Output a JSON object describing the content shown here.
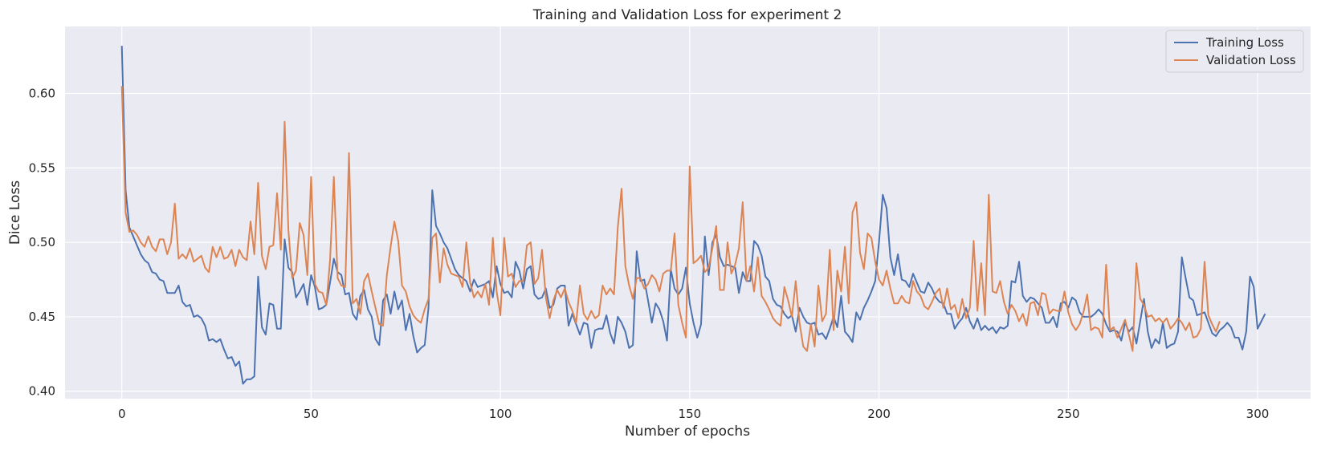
{
  "chart_data": {
    "type": "line",
    "title": "Training and Validation Loss for experiment 2",
    "xlabel": "Number of epochs",
    "ylabel": "Dice Loss",
    "xlim": [
      -15,
      314
    ],
    "ylim": [
      0.395,
      0.645
    ],
    "xticks": [
      0,
      50,
      100,
      150,
      200,
      250,
      300
    ],
    "yticks": [
      0.4,
      0.45,
      0.5,
      0.55,
      0.6
    ],
    "ytick_labels": [
      "0.40",
      "0.45",
      "0.50",
      "0.55",
      "0.60"
    ],
    "grid": true,
    "legend_position": "top-right",
    "colors": {
      "background": "#EAEAF2",
      "grid": "#FFFFFF",
      "training": "#4C72B0",
      "validation": "#DD8452"
    },
    "series": [
      {
        "name": "Training Loss",
        "color": "#4C72B0",
        "x_start": 0,
        "values": [
          0.632,
          0.535,
          0.51,
          0.504,
          0.498,
          0.492,
          0.488,
          0.486,
          0.48,
          0.479,
          0.475,
          0.474,
          0.466,
          0.466,
          0.466,
          0.471,
          0.46,
          0.457,
          0.458,
          0.45,
          0.451,
          0.449,
          0.444,
          0.434,
          0.435,
          0.433,
          0.435,
          0.428,
          0.422,
          0.423,
          0.417,
          0.42,
          0.405,
          0.408,
          0.408,
          0.41,
          0.477,
          0.443,
          0.438,
          0.459,
          0.458,
          0.442,
          0.442,
          0.502,
          0.483,
          0.48,
          0.463,
          0.467,
          0.472,
          0.458,
          0.478,
          0.47,
          0.455,
          0.456,
          0.458,
          0.473,
          0.489,
          0.48,
          0.478,
          0.465,
          0.466,
          0.452,
          0.448,
          0.464,
          0.468,
          0.455,
          0.45,
          0.435,
          0.431,
          0.461,
          0.465,
          0.452,
          0.467,
          0.455,
          0.461,
          0.441,
          0.452,
          0.437,
          0.426,
          0.429,
          0.431,
          0.456,
          0.535,
          0.511,
          0.506,
          0.5,
          0.496,
          0.489,
          0.482,
          0.478,
          0.476,
          0.474,
          0.467,
          0.475,
          0.47,
          0.471,
          0.472,
          0.474,
          0.463,
          0.484,
          0.472,
          0.466,
          0.467,
          0.463,
          0.487,
          0.481,
          0.469,
          0.482,
          0.484,
          0.465,
          0.462,
          0.463,
          0.469,
          0.456,
          0.458,
          0.469,
          0.471,
          0.471,
          0.444,
          0.452,
          0.445,
          0.438,
          0.446,
          0.445,
          0.429,
          0.441,
          0.442,
          0.442,
          0.451,
          0.439,
          0.432,
          0.45,
          0.446,
          0.44,
          0.429,
          0.431,
          0.494,
          0.474,
          0.475,
          0.461,
          0.446,
          0.459,
          0.455,
          0.447,
          0.434,
          0.482,
          0.469,
          0.465,
          0.469,
          0.483,
          0.459,
          0.446,
          0.436,
          0.445,
          0.504,
          0.478,
          0.5,
          0.505,
          0.49,
          0.484,
          0.485,
          0.484,
          0.483,
          0.466,
          0.48,
          0.474,
          0.474,
          0.501,
          0.498,
          0.491,
          0.477,
          0.474,
          0.462,
          0.458,
          0.457,
          0.452,
          0.449,
          0.451,
          0.44,
          0.456,
          0.45,
          0.446,
          0.445,
          0.446,
          0.438,
          0.439,
          0.435,
          0.442,
          0.45,
          0.443,
          0.464,
          0.44,
          0.437,
          0.433,
          0.453,
          0.448,
          0.456,
          0.461,
          0.467,
          0.474,
          0.5,
          0.532,
          0.523,
          0.49,
          0.478,
          0.492,
          0.475,
          0.474,
          0.47,
          0.479,
          0.473,
          0.467,
          0.466,
          0.473,
          0.469,
          0.463,
          0.46,
          0.459,
          0.452,
          0.452,
          0.442,
          0.446,
          0.449,
          0.456,
          0.447,
          0.442,
          0.449,
          0.441,
          0.444,
          0.441,
          0.443,
          0.439,
          0.443,
          0.442,
          0.444,
          0.474,
          0.473,
          0.487,
          0.464,
          0.46,
          0.463,
          0.462,
          0.459,
          0.456,
          0.446,
          0.446,
          0.45,
          0.443,
          0.459,
          0.46,
          0.456,
          0.463,
          0.461,
          0.453,
          0.45,
          0.45,
          0.45,
          0.452,
          0.455,
          0.452,
          0.445,
          0.44,
          0.441,
          0.44,
          0.434,
          0.446,
          0.44,
          0.443,
          0.432,
          0.447,
          0.462,
          0.44,
          0.429,
          0.435,
          0.432,
          0.446,
          0.429,
          0.431,
          0.432,
          0.44,
          0.49,
          0.476,
          0.463,
          0.461,
          0.451,
          0.452,
          0.453,
          0.446,
          0.439,
          0.437,
          0.441,
          0.443,
          0.446,
          0.443,
          0.436,
          0.436,
          0.428,
          0.44,
          0.477,
          0.47,
          0.442,
          0.447,
          0.452
        ]
      },
      {
        "name": "Validation Loss",
        "color": "#DD8452",
        "x_start": 0,
        "values": [
          0.605,
          0.52,
          0.507,
          0.508,
          0.505,
          0.5,
          0.497,
          0.504,
          0.497,
          0.494,
          0.502,
          0.502,
          0.492,
          0.5,
          0.526,
          0.489,
          0.492,
          0.489,
          0.496,
          0.487,
          0.489,
          0.491,
          0.483,
          0.48,
          0.497,
          0.49,
          0.497,
          0.489,
          0.49,
          0.495,
          0.484,
          0.495,
          0.49,
          0.488,
          0.514,
          0.492,
          0.54,
          0.491,
          0.482,
          0.497,
          0.498,
          0.533,
          0.495,
          0.581,
          0.508,
          0.476,
          0.481,
          0.513,
          0.505,
          0.478,
          0.544,
          0.472,
          0.467,
          0.466,
          0.458,
          0.488,
          0.544,
          0.476,
          0.471,
          0.47,
          0.56,
          0.459,
          0.462,
          0.452,
          0.474,
          0.479,
          0.467,
          0.456,
          0.445,
          0.444,
          0.478,
          0.497,
          0.514,
          0.501,
          0.471,
          0.467,
          0.457,
          0.451,
          0.448,
          0.446,
          0.455,
          0.462,
          0.503,
          0.506,
          0.473,
          0.496,
          0.485,
          0.479,
          0.478,
          0.477,
          0.47,
          0.5,
          0.473,
          0.463,
          0.467,
          0.463,
          0.472,
          0.458,
          0.503,
          0.467,
          0.451,
          0.503,
          0.477,
          0.479,
          0.47,
          0.474,
          0.474,
          0.498,
          0.5,
          0.472,
          0.476,
          0.495,
          0.463,
          0.449,
          0.461,
          0.468,
          0.463,
          0.469,
          0.46,
          0.454,
          0.446,
          0.471,
          0.452,
          0.448,
          0.454,
          0.449,
          0.451,
          0.471,
          0.465,
          0.469,
          0.465,
          0.51,
          0.536,
          0.484,
          0.471,
          0.462,
          0.476,
          0.476,
          0.469,
          0.472,
          0.478,
          0.475,
          0.467,
          0.479,
          0.481,
          0.481,
          0.506,
          0.458,
          0.446,
          0.436,
          0.551,
          0.486,
          0.488,
          0.491,
          0.48,
          0.483,
          0.496,
          0.511,
          0.468,
          0.468,
          0.5,
          0.479,
          0.485,
          0.496,
          0.527,
          0.474,
          0.484,
          0.467,
          0.49,
          0.464,
          0.46,
          0.455,
          0.449,
          0.446,
          0.444,
          0.47,
          0.461,
          0.45,
          0.474,
          0.446,
          0.43,
          0.427,
          0.445,
          0.43,
          0.471,
          0.447,
          0.452,
          0.495,
          0.441,
          0.481,
          0.467,
          0.497,
          0.459,
          0.52,
          0.527,
          0.493,
          0.482,
          0.506,
          0.503,
          0.487,
          0.475,
          0.471,
          0.481,
          0.469,
          0.459,
          0.459,
          0.464,
          0.46,
          0.459,
          0.474,
          0.467,
          0.464,
          0.457,
          0.455,
          0.46,
          0.466,
          0.469,
          0.456,
          0.469,
          0.455,
          0.458,
          0.449,
          0.462,
          0.449,
          0.456,
          0.501,
          0.454,
          0.486,
          0.451,
          0.532,
          0.467,
          0.466,
          0.474,
          0.46,
          0.452,
          0.458,
          0.454,
          0.447,
          0.452,
          0.444,
          0.459,
          0.46,
          0.451,
          0.466,
          0.465,
          0.452,
          0.455,
          0.454,
          0.454,
          0.467,
          0.453,
          0.445,
          0.441,
          0.445,
          0.453,
          0.465,
          0.441,
          0.443,
          0.442,
          0.436,
          0.485,
          0.441,
          0.443,
          0.436,
          0.442,
          0.448,
          0.438,
          0.427,
          0.486,
          0.462,
          0.458,
          0.45,
          0.451,
          0.447,
          0.449,
          0.446,
          0.449,
          0.442,
          0.445,
          0.449,
          0.446,
          0.441,
          0.446,
          0.436,
          0.437,
          0.442,
          0.487,
          0.451,
          0.445,
          0.44,
          0.447
        ]
      }
    ]
  }
}
